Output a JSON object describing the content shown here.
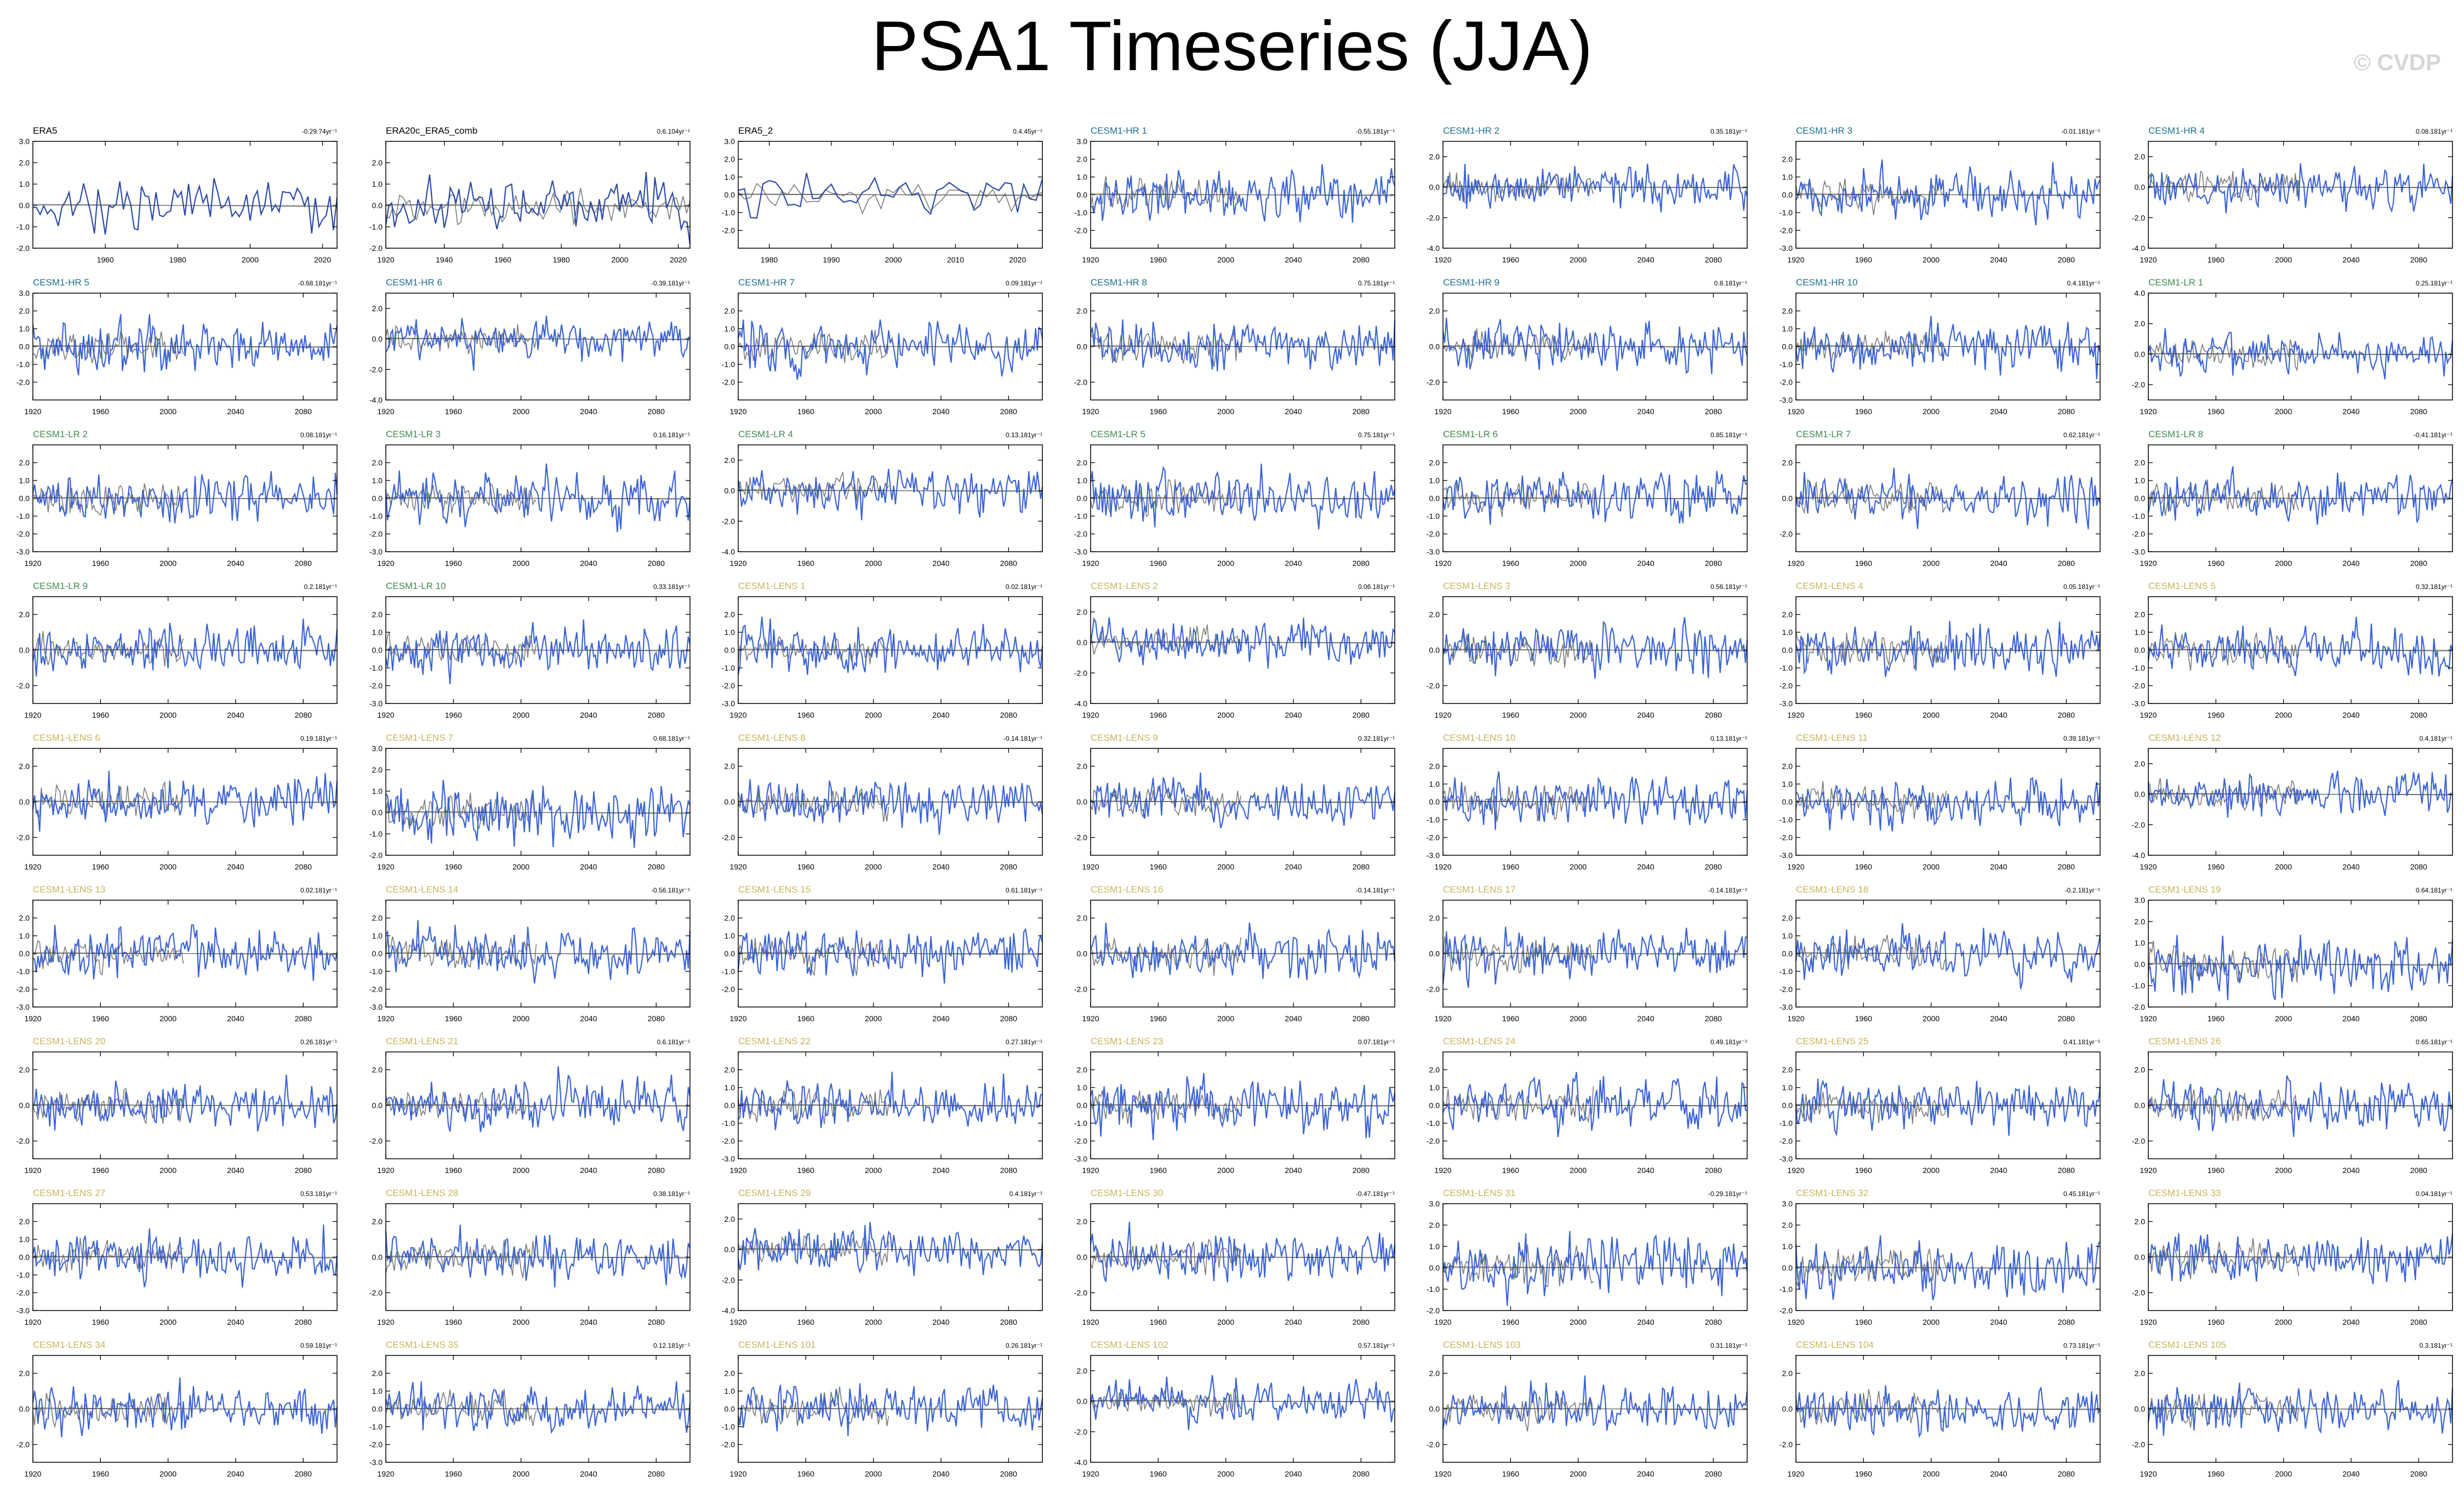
{
  "title": "PSA1 Timeseries (JJA)",
  "watermark": "© CVDP",
  "colors": {
    "model_line": "#3a63d6",
    "obs_line": "#7a7a7a",
    "axis": "#000000",
    "obs_label": "#000000",
    "hr_label": "#1a6f8f",
    "lr_label": "#3f8a4e",
    "lens_label": "#c8b45a"
  },
  "chart_data": [
    {
      "type": "line",
      "title": "ERA5",
      "trend": "-0.29.74yr⁻¹",
      "group": "obs",
      "xlim": [
        1940,
        2024
      ],
      "xticks": [
        1960,
        1980,
        2000,
        2020
      ],
      "ylim": [
        -2,
        3
      ],
      "yticks": [
        -2.0,
        -1.0,
        0.0,
        1.0,
        2.0,
        3.0
      ]
    },
    {
      "type": "line",
      "title": "ERA20c_ERA5_comb",
      "trend": "0.6.104yr⁻¹",
      "group": "obs",
      "xlim": [
        1920,
        2024
      ],
      "xticks": [
        1920,
        1940,
        1960,
        1980,
        2000,
        2020
      ],
      "ylim": [
        -2,
        3
      ],
      "yticks": [
        -2.0,
        -1.0,
        0.0,
        1.0,
        2.0
      ]
    },
    {
      "type": "line",
      "title": "ERA5_2",
      "trend": "0.4.45yr⁻¹",
      "group": "obs",
      "xlim": [
        1975,
        2024
      ],
      "xticks": [
        1980,
        1990,
        2000,
        2010,
        2020
      ],
      "ylim": [
        -3,
        3
      ],
      "yticks": [
        -2.0,
        -1.0,
        0.0,
        1.0,
        2.0,
        3.0
      ]
    },
    {
      "type": "line",
      "title": "CESM1-HR 1",
      "trend": "-0.55.181yr⁻¹",
      "group": "hr",
      "ylim": [
        -3,
        3
      ],
      "yticks": [
        -2.0,
        -1.0,
        0.0,
        1.0,
        2.0,
        3.0
      ]
    },
    {
      "type": "line",
      "title": "CESM1-HR 2",
      "trend": "0.35.181yr⁻¹",
      "group": "hr",
      "ylim": [
        -4,
        3
      ],
      "yticks": [
        -4.0,
        -2.0,
        0.0,
        2.0
      ]
    },
    {
      "type": "line",
      "title": "CESM1-HR 3",
      "trend": "-0.01.181yr⁻¹",
      "group": "hr",
      "ylim": [
        -3,
        3
      ],
      "yticks": [
        -3.0,
        -2.0,
        -1.0,
        0.0,
        1.0,
        2.0
      ]
    },
    {
      "type": "line",
      "title": "CESM1-HR 4",
      "trend": "0.08.181yr⁻¹",
      "group": "hr",
      "ylim": [
        -4,
        3
      ],
      "yticks": [
        -4.0,
        -2.0,
        0.0,
        2.0
      ]
    },
    {
      "type": "line",
      "title": "CESM1-HR 5",
      "trend": "-0.68.181yr⁻¹",
      "group": "hr",
      "ylim": [
        -3,
        3
      ],
      "yticks": [
        -2.0,
        -1.0,
        0.0,
        1.0,
        2.0,
        3.0
      ]
    },
    {
      "type": "line",
      "title": "CESM1-HR 6",
      "trend": "-0.39.181yr⁻¹",
      "group": "hr",
      "ylim": [
        -4,
        3
      ],
      "yticks": [
        -4.0,
        -2.0,
        0.0,
        2.0
      ]
    },
    {
      "type": "line",
      "title": "CESM1-HR 7",
      "trend": "0.09.181yr⁻¹",
      "group": "hr",
      "ylim": [
        -3,
        3
      ],
      "yticks": [
        -2.0,
        -1.0,
        0.0,
        1.0,
        2.0
      ]
    },
    {
      "type": "line",
      "title": "CESM1-HR 8",
      "trend": "0.75.181yr⁻¹",
      "group": "hr",
      "ylim": [
        -3,
        3
      ],
      "yticks": [
        -2.0,
        0.0,
        2.0
      ]
    },
    {
      "type": "line",
      "title": "CESM1-HR 9",
      "trend": "0.8.181yr⁻¹",
      "group": "hr",
      "ylim": [
        -3,
        3
      ],
      "yticks": [
        -2.0,
        0.0,
        2.0
      ]
    },
    {
      "type": "line",
      "title": "CESM1-HR 10",
      "trend": "0.4.181yr⁻¹",
      "group": "hr",
      "ylim": [
        -3,
        3
      ],
      "yticks": [
        -3.0,
        -2.0,
        -1.0,
        0.0,
        1.0,
        2.0
      ]
    },
    {
      "type": "line",
      "title": "CESM1-LR 1",
      "trend": "0.25.181yr⁻¹",
      "group": "lr",
      "ylim": [
        -3,
        4
      ],
      "yticks": [
        -2.0,
        0.0,
        2.0,
        4.0
      ]
    },
    {
      "type": "line",
      "title": "CESM1-LR 2",
      "trend": "0.08.181yr⁻¹",
      "group": "lr",
      "ylim": [
        -3,
        3
      ],
      "yticks": [
        -3.0,
        -2.0,
        -1.0,
        0.0,
        1.0,
        2.0
      ]
    },
    {
      "type": "line",
      "title": "CESM1-LR 3",
      "trend": "0.16.181yr⁻¹",
      "group": "lr",
      "ylim": [
        -3,
        3
      ],
      "yticks": [
        -3.0,
        -2.0,
        -1.0,
        0.0,
        1.0,
        2.0
      ]
    },
    {
      "type": "line",
      "title": "CESM1-LR 4",
      "trend": "0.13.181yr⁻¹",
      "group": "lr",
      "ylim": [
        -4,
        3
      ],
      "yticks": [
        -4.0,
        -2.0,
        0.0,
        2.0
      ]
    },
    {
      "type": "line",
      "title": "CESM1-LR 5",
      "trend": "0.75.181yr⁻¹",
      "group": "lr",
      "ylim": [
        -3,
        3
      ],
      "yticks": [
        -3.0,
        -2.0,
        -1.0,
        0.0,
        1.0,
        2.0
      ]
    },
    {
      "type": "line",
      "title": "CESM1-LR 6",
      "trend": "0.85.181yr⁻¹",
      "group": "lr",
      "ylim": [
        -3,
        3
      ],
      "yticks": [
        -3.0,
        -2.0,
        -1.0,
        0.0,
        1.0,
        2.0
      ]
    },
    {
      "type": "line",
      "title": "CESM1-LR 7",
      "trend": "0.62.181yr⁻¹",
      "group": "lr",
      "ylim": [
        -3,
        3
      ],
      "yticks": [
        -2.0,
        0.0,
        2.0
      ]
    },
    {
      "type": "line",
      "title": "CESM1-LR 8",
      "trend": "-0.41.181yr⁻¹",
      "group": "lr",
      "ylim": [
        -3,
        3
      ],
      "yticks": [
        -3.0,
        -2.0,
        -1.0,
        0.0,
        1.0,
        2.0
      ]
    },
    {
      "type": "line",
      "title": "CESM1-LR 9",
      "trend": "0.2.181yr⁻¹",
      "group": "lr",
      "ylim": [
        -3,
        3
      ],
      "yticks": [
        -2.0,
        0.0,
        2.0
      ]
    },
    {
      "type": "line",
      "title": "CESM1-LR 10",
      "trend": "0.33.181yr⁻¹",
      "group": "lr",
      "ylim": [
        -3,
        3
      ],
      "yticks": [
        -3.0,
        -2.0,
        -1.0,
        0.0,
        1.0,
        2.0
      ]
    },
    {
      "type": "line",
      "title": "CESM1-LENS 1",
      "trend": "0.02.181yr⁻¹",
      "group": "lens",
      "ylim": [
        -3,
        3
      ],
      "yticks": [
        -3.0,
        -2.0,
        -1.0,
        0.0,
        1.0,
        2.0
      ]
    },
    {
      "type": "line",
      "title": "CESM1-LENS 2",
      "trend": "0.06.181yr⁻¹",
      "group": "lens",
      "ylim": [
        -4,
        3
      ],
      "yticks": [
        -4.0,
        -2.0,
        0.0,
        2.0
      ]
    },
    {
      "type": "line",
      "title": "CESM1-LENS 3",
      "trend": "0.56.181yr⁻¹",
      "group": "lens",
      "ylim": [
        -3,
        3
      ],
      "yticks": [
        -2.0,
        0.0,
        2.0
      ]
    },
    {
      "type": "line",
      "title": "CESM1-LENS 4",
      "trend": "0.05.181yr⁻¹",
      "group": "lens",
      "ylim": [
        -3,
        3
      ],
      "yticks": [
        -3.0,
        -2.0,
        -1.0,
        0.0,
        1.0,
        2.0
      ]
    },
    {
      "type": "line",
      "title": "CESM1-LENS 5",
      "trend": "0.32.181yr⁻¹",
      "group": "lens",
      "ylim": [
        -3,
        3
      ],
      "yticks": [
        -3.0,
        -2.0,
        -1.0,
        0.0,
        1.0,
        2.0
      ]
    },
    {
      "type": "line",
      "title": "CESM1-LENS 6",
      "trend": "0.19.181yr⁻¹",
      "group": "lens",
      "ylim": [
        -3,
        3
      ],
      "yticks": [
        -2.0,
        0.0,
        2.0
      ]
    },
    {
      "type": "line",
      "title": "CESM1-LENS 7",
      "trend": "0.68.181yr⁻¹",
      "group": "lens",
      "ylim": [
        -2,
        3
      ],
      "yticks": [
        -2.0,
        -1.0,
        0.0,
        1.0,
        2.0,
        3.0
      ]
    },
    {
      "type": "line",
      "title": "CESM1-LENS 8",
      "trend": "-0.14.181yr⁻¹",
      "group": "lens",
      "ylim": [
        -3,
        3
      ],
      "yticks": [
        -2.0,
        0.0,
        2.0
      ]
    },
    {
      "type": "line",
      "title": "CESM1-LENS 9",
      "trend": "0.32.181yr⁻¹",
      "group": "lens",
      "ylim": [
        -3,
        3
      ],
      "yticks": [
        -2.0,
        0.0,
        2.0
      ]
    },
    {
      "type": "line",
      "title": "CESM1-LENS 10",
      "trend": "0.13.181yr⁻¹",
      "group": "lens",
      "ylim": [
        -3,
        3
      ],
      "yticks": [
        -3.0,
        -2.0,
        -1.0,
        0.0,
        1.0,
        2.0
      ]
    },
    {
      "type": "line",
      "title": "CESM1-LENS 11",
      "trend": "0.39.181yr⁻¹",
      "group": "lens",
      "ylim": [
        -3,
        3
      ],
      "yticks": [
        -3.0,
        -2.0,
        -1.0,
        0.0,
        1.0,
        2.0
      ]
    },
    {
      "type": "line",
      "title": "CESM1-LENS 12",
      "trend": "0.4.181yr⁻¹",
      "group": "lens",
      "ylim": [
        -4,
        3
      ],
      "yticks": [
        -4.0,
        -2.0,
        0.0,
        2.0
      ]
    },
    {
      "type": "line",
      "title": "CESM1-LENS 13",
      "trend": "0.02.181yr⁻¹",
      "group": "lens",
      "ylim": [
        -3,
        3
      ],
      "yticks": [
        -3.0,
        -2.0,
        -1.0,
        0.0,
        1.0,
        2.0
      ]
    },
    {
      "type": "line",
      "title": "CESM1-LENS 14",
      "trend": "-0.56.181yr⁻¹",
      "group": "lens",
      "ylim": [
        -3,
        3
      ],
      "yticks": [
        -3.0,
        -2.0,
        -1.0,
        0.0,
        1.0,
        2.0
      ]
    },
    {
      "type": "line",
      "title": "CESM1-LENS 15",
      "trend": "0.61.181yr⁻¹",
      "group": "lens",
      "ylim": [
        -3,
        3
      ],
      "yticks": [
        -2.0,
        -1.0,
        0.0,
        1.0,
        2.0
      ]
    },
    {
      "type": "line",
      "title": "CESM1-LENS 16",
      "trend": "-0.14.181yr⁻¹",
      "group": "lens",
      "ylim": [
        -3,
        3
      ],
      "yticks": [
        -2.0,
        0.0,
        2.0
      ]
    },
    {
      "type": "line",
      "title": "CESM1-LENS 17",
      "trend": "-0.14.181yr⁻¹",
      "group": "lens",
      "ylim": [
        -3,
        3
      ],
      "yticks": [
        -2.0,
        0.0,
        2.0
      ]
    },
    {
      "type": "line",
      "title": "CESM1-LENS 18",
      "trend": "-0.2.181yr⁻¹",
      "group": "lens",
      "ylim": [
        -3,
        3
      ],
      "yticks": [
        -3.0,
        -2.0,
        -1.0,
        0.0,
        1.0,
        2.0
      ]
    },
    {
      "type": "line",
      "title": "CESM1-LENS 19",
      "trend": "0.64.181yr⁻¹",
      "group": "lens",
      "ylim": [
        -2,
        3
      ],
      "yticks": [
        -2.0,
        -1.0,
        0.0,
        1.0,
        2.0,
        3.0
      ]
    },
    {
      "type": "line",
      "title": "CESM1-LENS 20",
      "trend": "0.26.181yr⁻¹",
      "group": "lens",
      "ylim": [
        -3,
        3
      ],
      "yticks": [
        -2.0,
        0.0,
        2.0
      ]
    },
    {
      "type": "line",
      "title": "CESM1-LENS 21",
      "trend": "0.6.181yr⁻¹",
      "group": "lens",
      "ylim": [
        -3,
        3
      ],
      "yticks": [
        -2.0,
        0.0,
        2.0
      ]
    },
    {
      "type": "line",
      "title": "CESM1-LENS 22",
      "trend": "0.27.181yr⁻¹",
      "group": "lens",
      "ylim": [
        -3,
        3
      ],
      "yticks": [
        -3.0,
        -2.0,
        -1.0,
        0.0,
        1.0,
        2.0
      ]
    },
    {
      "type": "line",
      "title": "CESM1-LENS 23",
      "trend": "0.07.181yr⁻¹",
      "group": "lens",
      "ylim": [
        -3,
        3
      ],
      "yticks": [
        -3.0,
        -2.0,
        -1.0,
        0.0,
        1.0,
        2.0
      ]
    },
    {
      "type": "line",
      "title": "CESM1-LENS 24",
      "trend": "0.49.181yr⁻¹",
      "group": "lens",
      "ylim": [
        -3,
        3
      ],
      "yticks": [
        -2.0,
        -1.0,
        0.0,
        1.0,
        2.0
      ]
    },
    {
      "type": "line",
      "title": "CESM1-LENS 25",
      "trend": "0.41.181yr⁻¹",
      "group": "lens",
      "ylim": [
        -3,
        3
      ],
      "yticks": [
        -3.0,
        -2.0,
        -1.0,
        0.0,
        1.0,
        2.0
      ]
    },
    {
      "type": "line",
      "title": "CESM1-LENS 26",
      "trend": "0.65.181yr⁻¹",
      "group": "lens",
      "ylim": [
        -3,
        3
      ],
      "yticks": [
        -2.0,
        0.0,
        2.0
      ]
    },
    {
      "type": "line",
      "title": "CESM1-LENS 27",
      "trend": "0.53.181yr⁻¹",
      "group": "lens",
      "ylim": [
        -3,
        3
      ],
      "yticks": [
        -3.0,
        -2.0,
        -1.0,
        0.0,
        1.0,
        2.0
      ]
    },
    {
      "type": "line",
      "title": "CESM1-LENS 28",
      "trend": "0.38.181yr⁻¹",
      "group": "lens",
      "ylim": [
        -3,
        3
      ],
      "yticks": [
        -2.0,
        0.0,
        2.0
      ]
    },
    {
      "type": "line",
      "title": "CESM1-LENS 29",
      "trend": "0.4.181yr⁻¹",
      "group": "lens",
      "ylim": [
        -4,
        3
      ],
      "yticks": [
        -4.0,
        -2.0,
        0.0,
        2.0
      ]
    },
    {
      "type": "line",
      "title": "CESM1-LENS 30",
      "trend": "-0.47.181yr⁻¹",
      "group": "lens",
      "ylim": [
        -3,
        3
      ],
      "yticks": [
        -2.0,
        0.0,
        2.0
      ]
    },
    {
      "type": "line",
      "title": "CESM1-LENS 31",
      "trend": "-0.29.181yr⁻¹",
      "group": "lens",
      "ylim": [
        -2,
        3
      ],
      "yticks": [
        -2.0,
        -1.0,
        0.0,
        1.0,
        2.0,
        3.0
      ]
    },
    {
      "type": "line",
      "title": "CESM1-LENS 32",
      "trend": "0.45.181yr⁻¹",
      "group": "lens",
      "ylim": [
        -2,
        3
      ],
      "yticks": [
        -2.0,
        -1.0,
        0.0,
        1.0,
        2.0,
        3.0
      ]
    },
    {
      "type": "line",
      "title": "CESM1-LENS 33",
      "trend": "0.04.181yr⁻¹",
      "group": "lens",
      "ylim": [
        -3,
        3
      ],
      "yticks": [
        -2.0,
        0.0,
        2.0
      ]
    },
    {
      "type": "line",
      "title": "CESM1-LENS 34",
      "trend": "0.59.181yr⁻¹",
      "group": "lens",
      "ylim": [
        -3,
        3
      ],
      "yticks": [
        -2.0,
        0.0,
        2.0
      ]
    },
    {
      "type": "line",
      "title": "CESM1-LENS 35",
      "trend": "0.12.181yr⁻¹",
      "group": "lens",
      "ylim": [
        -3,
        3
      ],
      "yticks": [
        -3.0,
        -2.0,
        -1.0,
        0.0,
        1.0,
        2.0
      ]
    },
    {
      "type": "line",
      "title": "CESM1-LENS 101",
      "trend": "0.26.181yr⁻¹",
      "group": "lens",
      "ylim": [
        -3,
        3
      ],
      "yticks": [
        -2.0,
        -1.0,
        0.0,
        1.0,
        2.0
      ]
    },
    {
      "type": "line",
      "title": "CESM1-LENS 102",
      "trend": "0.57.181yr⁻¹",
      "group": "lens",
      "ylim": [
        -4,
        3
      ],
      "yticks": [
        -4.0,
        -2.0,
        0.0,
        2.0
      ]
    },
    {
      "type": "line",
      "title": "CESM1-LENS 103",
      "trend": "0.31.181yr⁻¹",
      "group": "lens",
      "ylim": [
        -3,
        3
      ],
      "yticks": [
        -2.0,
        0.0,
        2.0
      ]
    },
    {
      "type": "line",
      "title": "CESM1-LENS 104",
      "trend": "0.73.181yr⁻¹",
      "group": "lens",
      "ylim": [
        -3,
        3
      ],
      "yticks": [
        -2.0,
        0.0,
        2.0
      ]
    },
    {
      "type": "line",
      "title": "CESM1-LENS 105",
      "trend": "0.3.181yr⁻¹",
      "group": "lens",
      "ylim": [
        -3,
        3
      ],
      "yticks": [
        -2.0,
        0.0,
        2.0
      ]
    }
  ]
}
